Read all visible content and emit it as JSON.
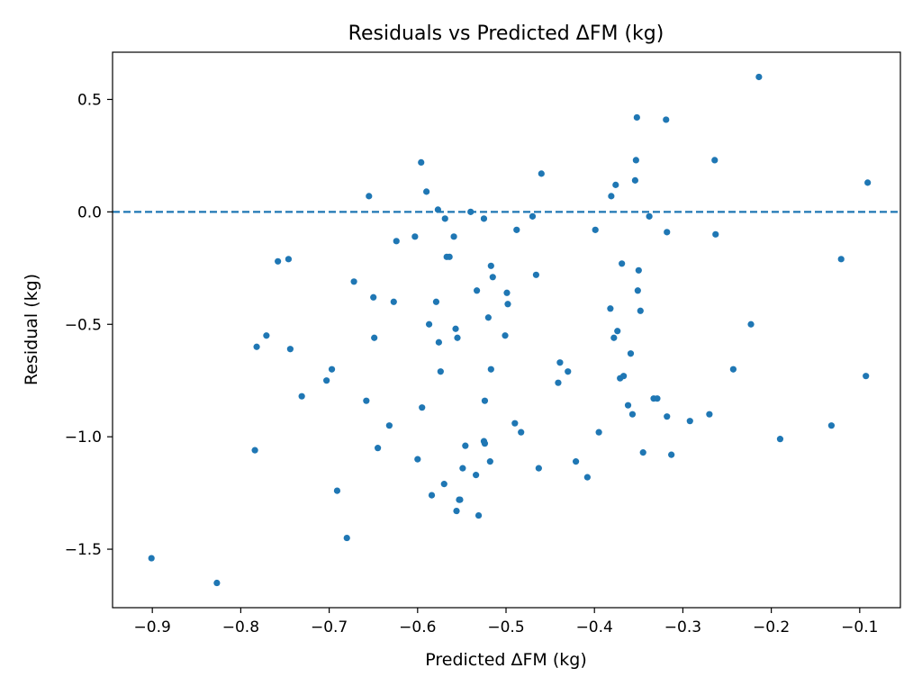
{
  "chart_data": {
    "type": "scatter",
    "title": "Residuals vs Predicted ΔFM (kg)",
    "xlabel": "Predicted ΔFM (kg)",
    "ylabel": "Residual (kg)",
    "xlim": [
      -0.945,
      -0.054
    ],
    "ylim": [
      -1.76,
      0.71
    ],
    "x_ticks": [
      -0.9,
      -0.8,
      -0.7,
      -0.6,
      -0.5,
      -0.4,
      -0.3,
      -0.2,
      -0.1
    ],
    "x_tick_labels": [
      "−0.9",
      "−0.8",
      "−0.7",
      "−0.6",
      "−0.5",
      "−0.4",
      "−0.3",
      "−0.2",
      "−0.1"
    ],
    "y_ticks": [
      -1.5,
      -1.0,
      -0.5,
      0.0,
      0.5
    ],
    "y_tick_labels": [
      "−1.5",
      "−1.0",
      "−0.5",
      "0.0",
      "0.5"
    ],
    "grid": false,
    "reference_line": {
      "y": 0.0,
      "style": "dashed"
    },
    "colors": {
      "points": "#1f77b4",
      "reference_line": "#1f77b4"
    },
    "points": [
      {
        "x": -0.901,
        "y": -1.54
      },
      {
        "x": -0.827,
        "y": -1.65
      },
      {
        "x": -0.784,
        "y": -1.06
      },
      {
        "x": -0.782,
        "y": -0.6
      },
      {
        "x": -0.771,
        "y": -0.55
      },
      {
        "x": -0.758,
        "y": -0.22
      },
      {
        "x": -0.746,
        "y": -0.21
      },
      {
        "x": -0.744,
        "y": -0.61
      },
      {
        "x": -0.731,
        "y": -0.82
      },
      {
        "x": -0.703,
        "y": -0.75
      },
      {
        "x": -0.697,
        "y": -0.7
      },
      {
        "x": -0.691,
        "y": -1.24
      },
      {
        "x": -0.68,
        "y": -1.45
      },
      {
        "x": -0.672,
        "y": -0.31
      },
      {
        "x": -0.658,
        "y": -0.84
      },
      {
        "x": -0.655,
        "y": 0.07
      },
      {
        "x": -0.65,
        "y": -0.38
      },
      {
        "x": -0.649,
        "y": -0.56
      },
      {
        "x": -0.645,
        "y": -1.05
      },
      {
        "x": -0.632,
        "y": -0.95
      },
      {
        "x": -0.627,
        "y": -0.4
      },
      {
        "x": -0.624,
        "y": -0.13
      },
      {
        "x": -0.603,
        "y": -0.11
      },
      {
        "x": -0.6,
        "y": -1.1
      },
      {
        "x": -0.596,
        "y": 0.22
      },
      {
        "x": -0.595,
        "y": -0.87
      },
      {
        "x": -0.59,
        "y": 0.09
      },
      {
        "x": -0.587,
        "y": -0.5
      },
      {
        "x": -0.584,
        "y": -1.26
      },
      {
        "x": -0.579,
        "y": -0.4
      },
      {
        "x": -0.577,
        "y": 0.01
      },
      {
        "x": -0.576,
        "y": -0.58
      },
      {
        "x": -0.574,
        "y": -0.71
      },
      {
        "x": -0.57,
        "y": -1.21
      },
      {
        "x": -0.569,
        "y": -0.03
      },
      {
        "x": -0.567,
        "y": -0.2
      },
      {
        "x": -0.564,
        "y": -0.2
      },
      {
        "x": -0.559,
        "y": -0.11
      },
      {
        "x": -0.557,
        "y": -0.52
      },
      {
        "x": -0.556,
        "y": -1.33
      },
      {
        "x": -0.555,
        "y": -0.56
      },
      {
        "x": -0.553,
        "y": -1.28
      },
      {
        "x": -0.552,
        "y": -1.28
      },
      {
        "x": -0.549,
        "y": -1.14
      },
      {
        "x": -0.546,
        "y": -1.04
      },
      {
        "x": -0.54,
        "y": 0.0
      },
      {
        "x": -0.534,
        "y": -1.17
      },
      {
        "x": -0.533,
        "y": -0.35
      },
      {
        "x": -0.531,
        "y": -1.35
      },
      {
        "x": -0.525,
        "y": -0.03
      },
      {
        "x": -0.525,
        "y": -1.02
      },
      {
        "x": -0.524,
        "y": -1.03
      },
      {
        "x": -0.524,
        "y": -0.84
      },
      {
        "x": -0.52,
        "y": -0.47
      },
      {
        "x": -0.518,
        "y": -1.11
      },
      {
        "x": -0.517,
        "y": -0.7
      },
      {
        "x": -0.517,
        "y": -0.24
      },
      {
        "x": -0.515,
        "y": -0.29
      },
      {
        "x": -0.501,
        "y": -0.55
      },
      {
        "x": -0.499,
        "y": -0.36
      },
      {
        "x": -0.498,
        "y": -0.41
      },
      {
        "x": -0.49,
        "y": -0.94
      },
      {
        "x": -0.488,
        "y": -0.08
      },
      {
        "x": -0.483,
        "y": -0.98
      },
      {
        "x": -0.47,
        "y": -0.02
      },
      {
        "x": -0.466,
        "y": -0.28
      },
      {
        "x": -0.463,
        "y": -1.14
      },
      {
        "x": -0.46,
        "y": 0.17
      },
      {
        "x": -0.441,
        "y": -0.76
      },
      {
        "x": -0.439,
        "y": -0.67
      },
      {
        "x": -0.43,
        "y": -0.71
      },
      {
        "x": -0.421,
        "y": -1.11
      },
      {
        "x": -0.408,
        "y": -1.18
      },
      {
        "x": -0.399,
        "y": -0.08
      },
      {
        "x": -0.395,
        "y": -0.98
      },
      {
        "x": -0.382,
        "y": -0.43
      },
      {
        "x": -0.381,
        "y": 0.07
      },
      {
        "x": -0.378,
        "y": -0.56
      },
      {
        "x": -0.376,
        "y": 0.12
      },
      {
        "x": -0.374,
        "y": -0.53
      },
      {
        "x": -0.371,
        "y": -0.74
      },
      {
        "x": -0.369,
        "y": -0.23
      },
      {
        "x": -0.367,
        "y": -0.73
      },
      {
        "x": -0.362,
        "y": -0.86
      },
      {
        "x": -0.359,
        "y": -0.63
      },
      {
        "x": -0.357,
        "y": -0.9
      },
      {
        "x": -0.354,
        "y": 0.14
      },
      {
        "x": -0.353,
        "y": 0.23
      },
      {
        "x": -0.352,
        "y": 0.42
      },
      {
        "x": -0.351,
        "y": -0.35
      },
      {
        "x": -0.35,
        "y": -0.26
      },
      {
        "x": -0.348,
        "y": -0.44
      },
      {
        "x": -0.345,
        "y": -1.07
      },
      {
        "x": -0.338,
        "y": -0.02
      },
      {
        "x": -0.333,
        "y": -0.83
      },
      {
        "x": -0.329,
        "y": -0.83
      },
      {
        "x": -0.319,
        "y": 0.41
      },
      {
        "x": -0.318,
        "y": -0.09
      },
      {
        "x": -0.318,
        "y": -0.91
      },
      {
        "x": -0.313,
        "y": -1.08
      },
      {
        "x": -0.292,
        "y": -0.93
      },
      {
        "x": -0.27,
        "y": -0.9
      },
      {
        "x": -0.264,
        "y": 0.23
      },
      {
        "x": -0.263,
        "y": -0.1
      },
      {
        "x": -0.243,
        "y": -0.7
      },
      {
        "x": -0.223,
        "y": -0.5
      },
      {
        "x": -0.214,
        "y": 0.6
      },
      {
        "x": -0.19,
        "y": -1.01
      },
      {
        "x": -0.132,
        "y": -0.95
      },
      {
        "x": -0.121,
        "y": -0.21
      },
      {
        "x": -0.093,
        "y": -0.73
      },
      {
        "x": -0.091,
        "y": 0.13
      }
    ]
  }
}
